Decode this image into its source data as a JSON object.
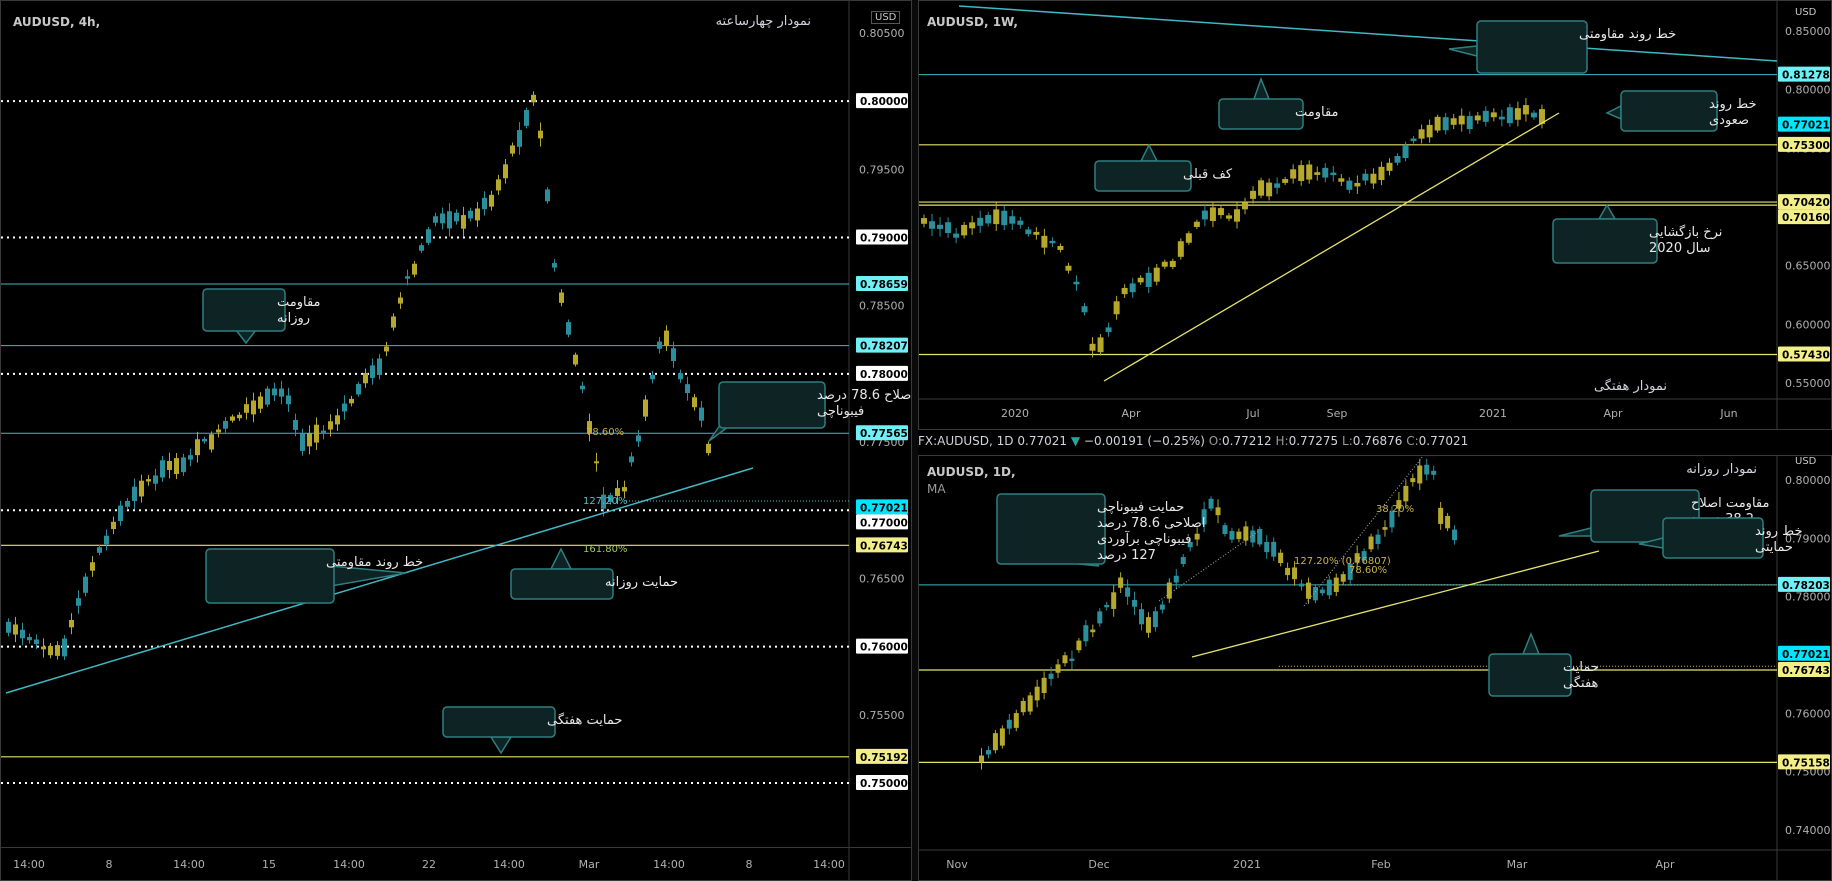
{
  "left_chart": {
    "symbol_label": "AUDUSD, 4h,",
    "title": "نمودار چهارساعته",
    "currency": "USD",
    "price_ticks": [
      "0.80500",
      "0.80000",
      "0.79500",
      "0.79000",
      "0.78500",
      "0.78000",
      "0.77500",
      "0.77000",
      "0.76500",
      "0.76000",
      "0.75500",
      "0.75000"
    ],
    "time_ticks": [
      "14:00",
      "8",
      "14:00",
      "15",
      "14:00",
      "22",
      "14:00",
      "Mar",
      "14:00",
      "8",
      "14:00"
    ],
    "price_badges": [
      {
        "label": "0.80000",
        "kind": "white"
      },
      {
        "label": "0.79000",
        "kind": "white"
      },
      {
        "label": "0.78659",
        "kind": "cyan"
      },
      {
        "label": "0.78207",
        "kind": "cyan"
      },
      {
        "label": "0.78000",
        "kind": "white"
      },
      {
        "label": "0.77565",
        "kind": "cyan"
      },
      {
        "label": "0.77021",
        "kind": "current"
      },
      {
        "label": "0.77000",
        "kind": "white"
      },
      {
        "label": "0.76743",
        "kind": "yellow"
      },
      {
        "label": "0.76000",
        "kind": "white"
      },
      {
        "label": "0.75192",
        "kind": "yellow"
      },
      {
        "label": "0.75000",
        "kind": "white"
      }
    ],
    "fib_labels": [
      "78.60%",
      "127.20%",
      "161.80%"
    ],
    "callouts": {
      "daily_resistance": "مقاومت روزانه",
      "fib_correction": "اصلاح 78.6 درصد فیبوناچی",
      "resistance_trendline": "خط روند مقاومتی",
      "daily_support": "حمایت روزانه",
      "weekly_support": "حمایت هفتگی"
    }
  },
  "weekly_chart": {
    "symbol_label": "AUDUSD, 1W,",
    "title": "نمودار هفتگی",
    "currency": "USD",
    "price_ticks": [
      "0.85000",
      "0.80000",
      "0.75000",
      "0.70000",
      "0.65000",
      "0.60000",
      "0.55000"
    ],
    "time_ticks": [
      "2020",
      "Apr",
      "Jul",
      "Sep",
      "2021",
      "Apr",
      "Jun"
    ],
    "price_badges": [
      {
        "label": "0.81278",
        "kind": "cyan"
      },
      {
        "label": "0.77021",
        "kind": "current"
      },
      {
        "label": "0.75300",
        "kind": "yellow"
      },
      {
        "label": "0.70420",
        "kind": "yellow"
      },
      {
        "label": "0.70160",
        "kind": "yellow"
      },
      {
        "label": "0.57430",
        "kind": "yellow"
      }
    ],
    "callouts": {
      "resistance_trendline": "خط روند مقاومتی",
      "resistance": "مقاومت",
      "uptrend_line": "خط روند صعودی",
      "previous_low": "کف قبلی",
      "opening_2020": "نرخ بازگشایی سال 2020"
    }
  },
  "info_bar": {
    "symbol": "FX:AUDUSD, 1D",
    "last": "0.77021",
    "arrow": "▼",
    "change": "−0.00191 (−0.25%)",
    "o_label": "O:",
    "o": "0.77212",
    "h_label": "H:",
    "h": "0.77275",
    "l_label": "L:",
    "l": "0.76876",
    "c_label": "C:",
    "c": "0.77021"
  },
  "daily_chart": {
    "symbol_label": "AUDUSD, 1D,",
    "indicator": "MA",
    "title": "نمودار روزانه",
    "currency": "USD",
    "price_ticks": [
      "0.80000",
      "0.79000",
      "0.78000",
      "0.77000",
      "0.76000",
      "0.75000",
      "0.74000"
    ],
    "time_ticks": [
      "Nov",
      "Dec",
      "2021",
      "Feb",
      "Mar",
      "Apr"
    ],
    "price_badges": [
      {
        "label": "0.78203",
        "kind": "cyan"
      },
      {
        "label": "0.77021",
        "kind": "current"
      },
      {
        "label": "0.76743",
        "kind": "yellow"
      },
      {
        "label": "0.75158",
        "kind": "yellow"
      }
    ],
    "fib_labels": [
      "38.20%",
      "127.20% (0.76807)",
      "78.60%"
    ],
    "callouts": {
      "fib_resistance": "مقاومت اصلاح 38.2 درصد فیبوناچی",
      "fib_support": "حمایت فیبوناچی اصلاحی 78.6 درصد فیبوناچی برآوردی 127 درصد",
      "support_trendline": "خط روند حمایتی",
      "weekly_support": "حمایت هفتگی"
    }
  },
  "colors": {
    "background": "#000000",
    "bull_candle": "#b5a82a",
    "bear_candle": "#2a8f9c",
    "cyan_line": "#3fb8c4",
    "yellow_line": "#e6e36a",
    "callout_border": "#2f7f80",
    "current_badge": "#00e5ff"
  }
}
